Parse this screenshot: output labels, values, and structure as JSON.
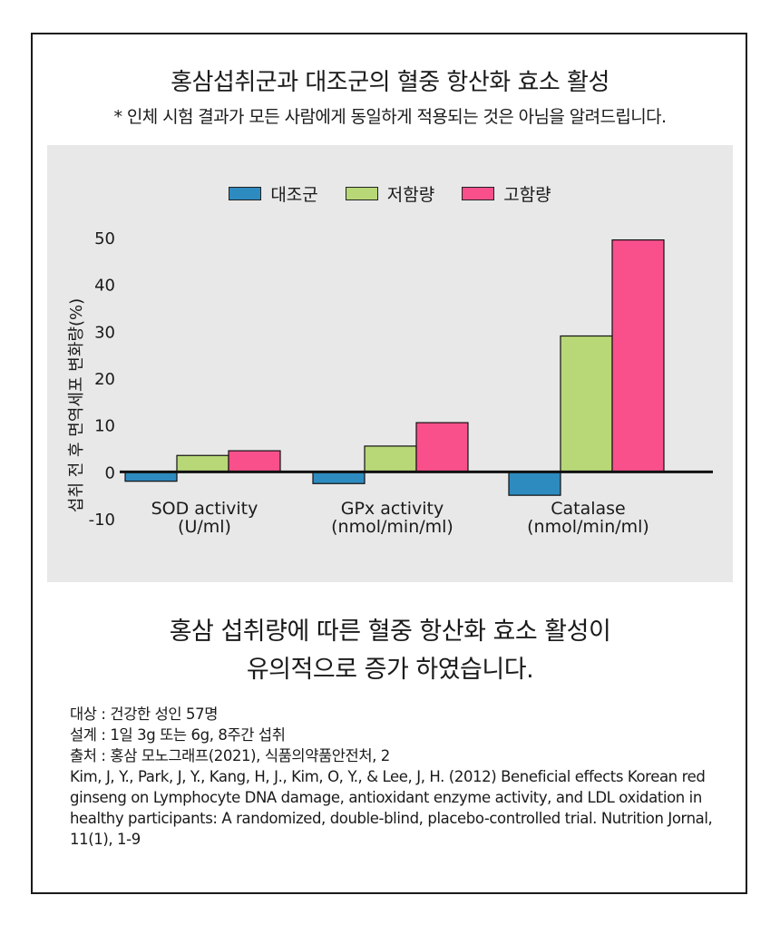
{
  "header": {
    "title": "홍삼섭취군과 대조군의 혈중 항산화 효소 활성",
    "subtitle": "* 인체 시험 결과가 모든 사람에게 동일하게 적용되는 것은 아님을 알려드립니다."
  },
  "chart_data": {
    "type": "bar",
    "categories": [
      {
        "line1": "SOD activity",
        "line2": "(U/ml)"
      },
      {
        "line1": "GPx activity",
        "line2": "(nmol/min/ml)"
      },
      {
        "line1": "Catalase",
        "line2": "(nmol/min/ml)"
      }
    ],
    "series": [
      {
        "name": "대조군",
        "color": "#2e8bc0",
        "values": [
          -2,
          -2.5,
          -5
        ]
      },
      {
        "name": "저함량",
        "color": "#b8d878",
        "values": [
          3.5,
          5.5,
          29
        ]
      },
      {
        "name": "고함량",
        "color": "#f9508c",
        "values": [
          4.5,
          10.5,
          49.5
        ]
      }
    ],
    "ylabel": "섭취 전 후 면역세포 변화량(%)",
    "ylim": [
      -10,
      50
    ],
    "yticks": [
      "-10",
      "0",
      "10",
      "20",
      "30",
      "40",
      "50"
    ],
    "legend_position": "top-center",
    "grid": false
  },
  "conclusion": {
    "line1": "홍삼 섭취량에 따른 혈중 항산화 효소 활성이",
    "line2": "유의적으로 증가 하였습니다."
  },
  "notes": [
    "대상 : 건강한 성인 57명",
    "설계 : 1일 3g 또는 6g, 8주간 섭취",
    "출처 : 홍삼 모노그래프(2021), 식품의약품안전처, 2",
    "Kim, J, Y., Park, J, Y., Kang, H, J., Kim, O, Y., & Lee, J, H. (2012) Beneficial effects Korean red ginseng on Lymphocyte DNA damage, antioxidant enzyme activity, and LDL oxidation in healthy participants: A randomized, double-blind, placebo-controlled trial. Nutrition Jornal, 11(1), 1-9"
  ]
}
